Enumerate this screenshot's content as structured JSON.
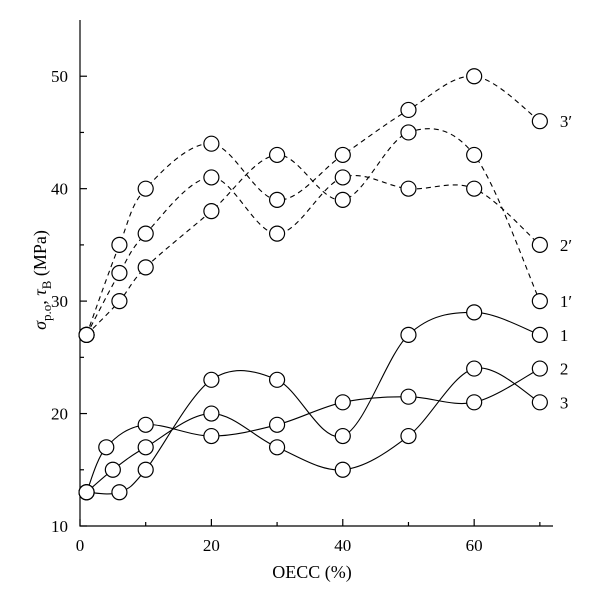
{
  "chart_data": {
    "type": "line",
    "title": "",
    "xlabel": "OECC (%)",
    "ylabel_parts": {
      "sigma": "σ",
      "sigma_sub": "p.o",
      "sep": ", ",
      "tau": "τ",
      "tau_sub": "B",
      "unit": " (MPa)"
    },
    "xlim": [
      0,
      72
    ],
    "ylim": [
      10,
      55
    ],
    "xticks": [
      "0",
      "20",
      "40",
      "60"
    ],
    "yticks": [
      "10",
      "20",
      "30",
      "40",
      "50"
    ],
    "xtick_values": [
      0,
      20,
      40,
      60
    ],
    "ytick_values": [
      10,
      20,
      30,
      40,
      50
    ],
    "grid": false,
    "series": [
      {
        "name": "1",
        "style": "solid",
        "x": [
          1,
          6,
          10,
          20,
          30,
          40,
          50,
          60,
          70
        ],
        "y": [
          13,
          13,
          15,
          23,
          23,
          18,
          27,
          29,
          27
        ]
      },
      {
        "name": "2",
        "style": "solid",
        "x": [
          1,
          4,
          10,
          20,
          30,
          40,
          50,
          60,
          70
        ],
        "y": [
          13,
          17,
          19,
          18,
          19,
          21,
          21.5,
          21,
          24
        ]
      },
      {
        "name": "3",
        "style": "solid",
        "x": [
          1,
          5,
          10,
          20,
          30,
          40,
          50,
          60,
          70
        ],
        "y": [
          13,
          15,
          17,
          20,
          17,
          15,
          18,
          24,
          21
        ]
      },
      {
        "name": "1′",
        "style": "dashed",
        "x": [
          1,
          6,
          10,
          20,
          30,
          40,
          50,
          60,
          70
        ],
        "y": [
          27,
          30,
          33,
          38,
          43,
          39,
          45,
          43,
          30
        ]
      },
      {
        "name": "2′",
        "style": "dashed",
        "x": [
          1,
          6,
          10,
          20,
          30,
          40,
          50,
          60,
          70
        ],
        "y": [
          27,
          32.5,
          36,
          41,
          36,
          41,
          40,
          40,
          35
        ]
      },
      {
        "name": "3′",
        "style": "dashed",
        "x": [
          1,
          6,
          10,
          20,
          30,
          40,
          50,
          60,
          70
        ],
        "y": [
          27,
          35,
          40,
          44,
          39,
          43,
          47,
          50,
          46
        ]
      }
    ]
  }
}
